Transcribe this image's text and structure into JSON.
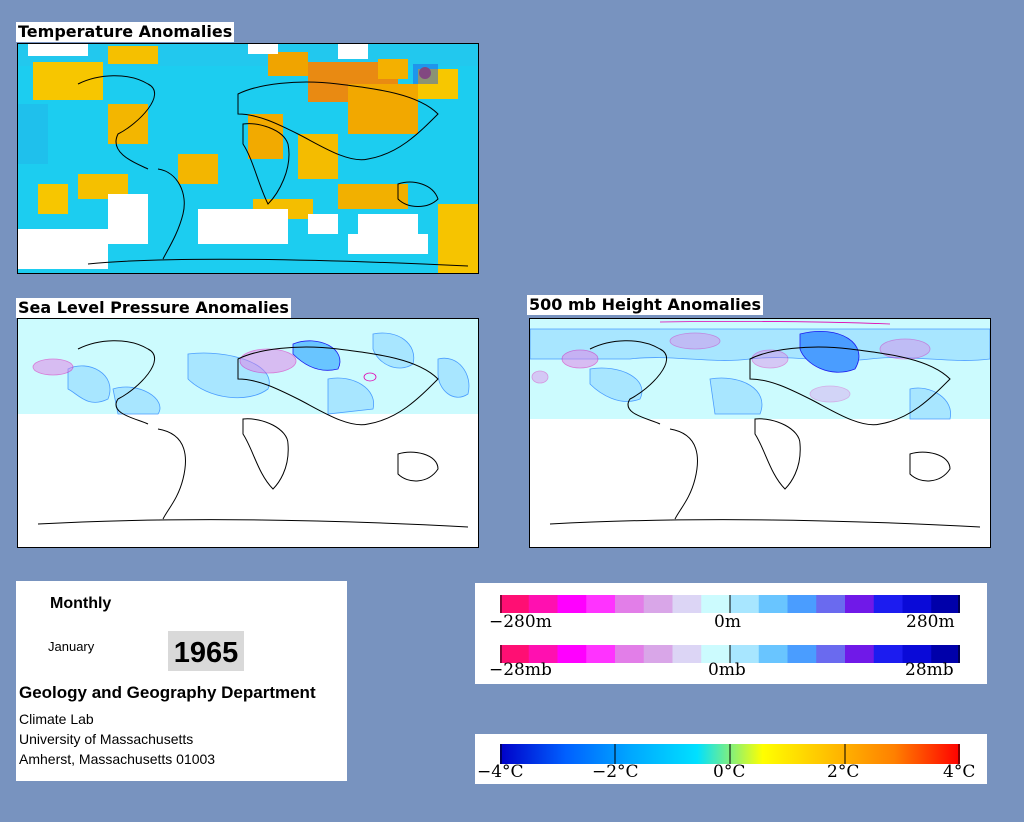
{
  "maps": {
    "temperature": {
      "title": "Temperature Anomalies"
    },
    "slp": {
      "title": "Sea Level Pressure Anomalies"
    },
    "height500": {
      "title": "500 mb Height Anomalies"
    }
  },
  "info": {
    "period": "Monthly",
    "month": "January",
    "year": "1965",
    "department": "Geology and Geography Department",
    "address_lines": [
      "Climate Lab",
      "University of Massachusetts",
      "Amherst, Massachusetts 01003"
    ]
  },
  "scales": {
    "height": {
      "labels": [
        "−280m",
        "0m",
        "280m"
      ]
    },
    "pressure": {
      "labels": [
        "−28mb",
        "0mb",
        "28mb"
      ]
    },
    "temperature": {
      "labels": [
        "−4°C",
        "−2°C",
        "0°C",
        "2°C",
        "4°C"
      ]
    }
  },
  "colors": {
    "background": "#7893bf",
    "pressure_scale": [
      "#ff0f73",
      "#ff10b0",
      "#ff00ff",
      "#ff33ff",
      "#e27ee8",
      "#d9a6e8",
      "#dcd5f5",
      "#ccfbfe",
      "#a8e6ff",
      "#69c5ff",
      "#4a9dff",
      "#6a6aef",
      "#7019e8",
      "#1c1cf0",
      "#0a0ad8",
      "#0000aa"
    ],
    "temperature_scale": [
      "#0000c8",
      "#0060ff",
      "#00a8ff",
      "#00e0ff",
      "#ffff00",
      "#ffc000",
      "#ff8000",
      "#ff0000"
    ]
  }
}
